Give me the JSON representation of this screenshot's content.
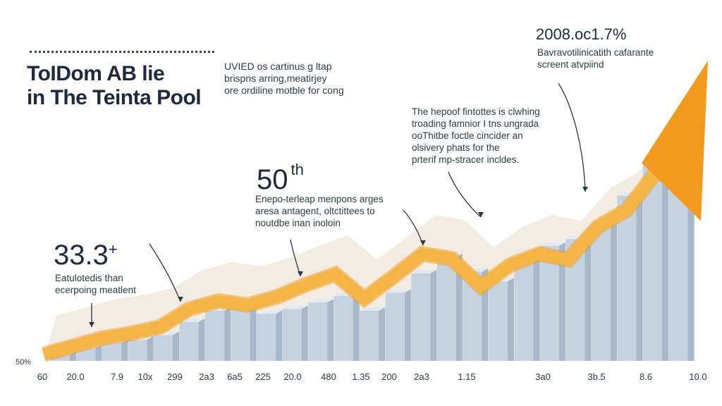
{
  "header": {
    "title_lines": [
      "ToIDom AB lie",
      "in The Teinta Pool"
    ],
    "subtitle_lines": [
      "UVIED os cartinus g ltap",
      "brispns arring,meatirjey",
      "ore ordiline motble for cong"
    ]
  },
  "callouts": {
    "c1": {
      "value": "33.3",
      "suffix": "+",
      "lines": [
        "Eatulotedis than",
        "ecerpoing meatlent"
      ]
    },
    "c2": {
      "value": "50",
      "suffix": "th",
      "lines": [
        "Enepo-terleap menpons arges",
        "aresa antagent, oltctittees to",
        "noutdbe inan inoloin"
      ]
    },
    "c3": {
      "lines": [
        "The hepoof fintottes is clwhing",
        "troading famnior I tns ungrada",
        "ooThitbe foctle cincider an",
        "olsivery phats for the",
        "prterif mp-stracer incldes."
      ]
    },
    "c4": {
      "value": "2008.oc1.7%",
      "lines": [
        "Bavravotilinicatith cafarante",
        "screent atvpiind"
      ]
    }
  },
  "chart_data": {
    "type": "bar",
    "title": "ToIDom AB lie in The Teinta Pool",
    "ylabel_tick": "50%",
    "x_tick_labels": [
      "60",
      "20.0",
      "7.9",
      "10x",
      "299",
      "2a3",
      "6a5",
      "225",
      "20.0",
      "480",
      "1.35",
      "200",
      "2a3",
      "1.15",
      "3a0",
      "3b.5",
      "8.6",
      "10.0"
    ],
    "bars": [
      8,
      16,
      22,
      26,
      32,
      48,
      62,
      66,
      58,
      64,
      72,
      80,
      62,
      84,
      108,
      128,
      110,
      98,
      126,
      142,
      150,
      166,
      204,
      246,
      296
    ],
    "trend_line": [
      8,
      18,
      28,
      34,
      42,
      64,
      74,
      69,
      79,
      94,
      107,
      77,
      104,
      132,
      126,
      92,
      118,
      132,
      125,
      165,
      186,
      232
    ],
    "colors": {
      "bar_front": "#c5d3e0",
      "bar_side": "#a6b8ca",
      "bar_top": "#e2eaf1",
      "line": "#f5b544",
      "line_edge": "#f0a02c",
      "arrow_head": "#f29a1d",
      "backdrop": "#f3ece2"
    }
  }
}
